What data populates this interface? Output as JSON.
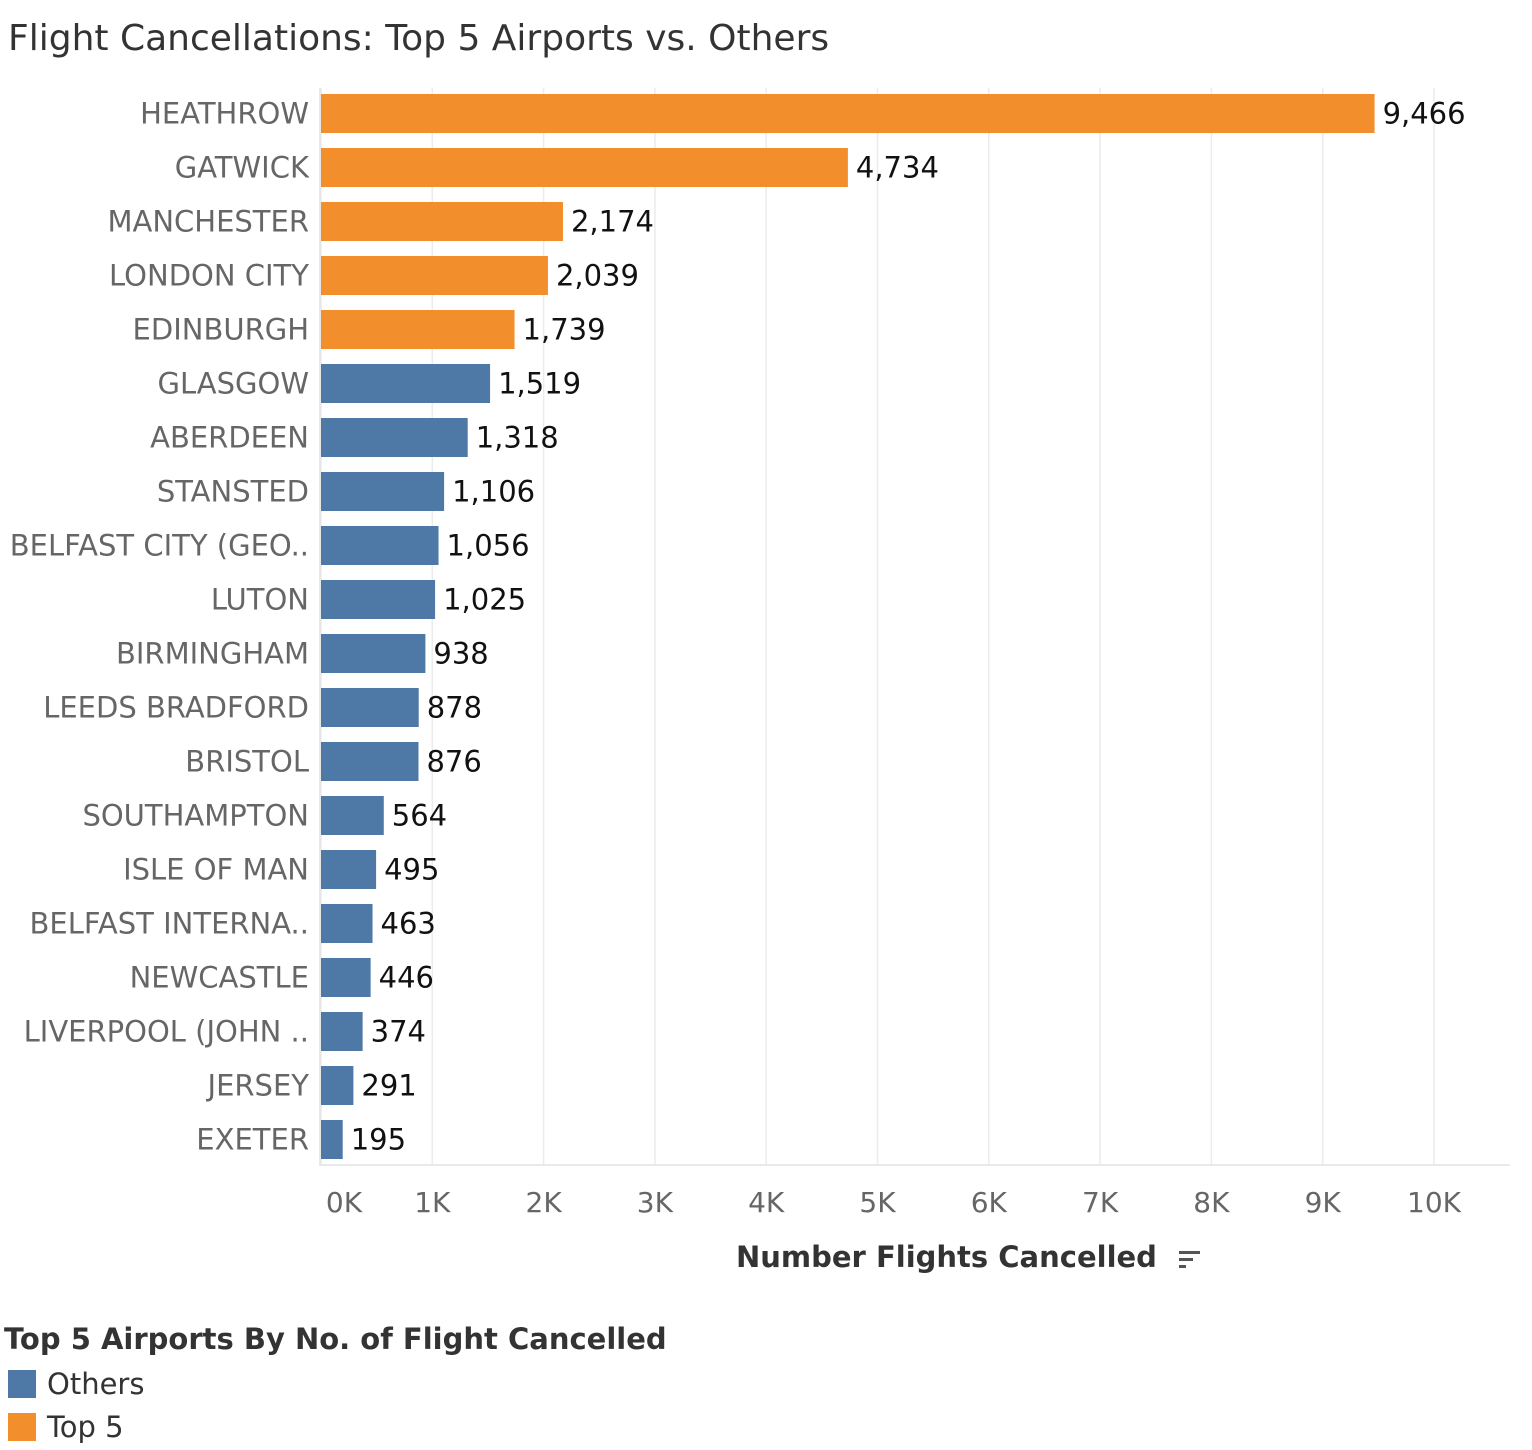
{
  "chart_data": {
    "type": "bar",
    "orientation": "horizontal",
    "title": "Flight Cancellations: Top 5 Airports vs. Others",
    "xlabel": "Number Flights Cancelled",
    "xlim": [
      0,
      10000
    ],
    "xticks": [
      "0K",
      "1K",
      "2K",
      "3K",
      "4K",
      "5K",
      "6K",
      "7K",
      "8K",
      "9K",
      "10K"
    ],
    "grid": true,
    "legend_position": "bottom-left",
    "categories": [
      "HEATHROW",
      "GATWICK",
      "MANCHESTER",
      "LONDON CITY",
      "EDINBURGH",
      "GLASGOW",
      "ABERDEEN",
      "STANSTED",
      "BELFAST CITY (GEO..",
      "LUTON",
      "BIRMINGHAM",
      "LEEDS BRADFORD",
      "BRISTOL",
      "SOUTHAMPTON",
      "ISLE OF MAN",
      "BELFAST INTERNA..",
      "NEWCASTLE",
      "LIVERPOOL (JOHN ..",
      "JERSEY",
      "EXETER"
    ],
    "values": [
      9466,
      4734,
      2174,
      2039,
      1739,
      1519,
      1318,
      1106,
      1056,
      1025,
      938,
      878,
      876,
      564,
      495,
      463,
      446,
      374,
      291,
      195
    ],
    "value_labels": [
      "9,466",
      "4,734",
      "2,174",
      "2,039",
      "1,739",
      "1,519",
      "1,318",
      "1,106",
      "1,056",
      "1,025",
      "938",
      "878",
      "876",
      "564",
      "495",
      "463",
      "446",
      "374",
      "291",
      "195"
    ],
    "groups": [
      "Top 5",
      "Top 5",
      "Top 5",
      "Top 5",
      "Top 5",
      "Others",
      "Others",
      "Others",
      "Others",
      "Others",
      "Others",
      "Others",
      "Others",
      "Others",
      "Others",
      "Others",
      "Others",
      "Others",
      "Others",
      "Others"
    ],
    "legend": {
      "title": "Top 5 Airports By No. of Flight Cancelled",
      "items": [
        {
          "name": "Others",
          "color": "#4e79a7"
        },
        {
          "name": "Top 5",
          "color": "#f28e2b"
        }
      ]
    },
    "colors": {
      "Top 5": "#f28e2b",
      "Others": "#4e79a7"
    }
  },
  "icons": {
    "sort": "sort-descending-icon"
  }
}
